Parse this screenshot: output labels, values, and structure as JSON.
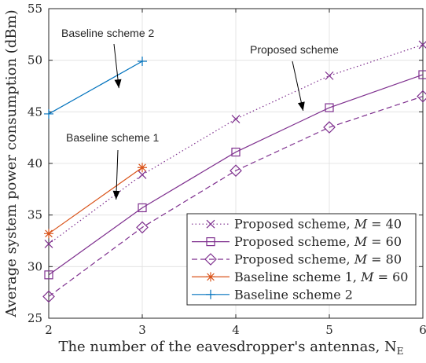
{
  "chart_data": {
    "type": "line",
    "xlabel": "The number of the eavesdropper's antennas, N",
    "xlabel_sub": "E",
    "ylabel": "Average system power consumption (dBm)",
    "xlim": [
      2,
      6
    ],
    "ylim": [
      25,
      55
    ],
    "xticks": [
      "2",
      "3",
      "4",
      "5",
      "6"
    ],
    "yticks": [
      "25",
      "30",
      "35",
      "40",
      "45",
      "50",
      "55"
    ],
    "grid": true,
    "legend_position": "bottom-right",
    "series": [
      {
        "legend_prefix": "Proposed scheme, ",
        "legend_var": "M",
        "legend_suffix": " = 40",
        "color": "#7E2F8E",
        "dash": "dotted",
        "marker": "x",
        "x": [
          2,
          3,
          4,
          5,
          6
        ],
        "values": [
          32.2,
          38.9,
          44.3,
          48.5,
          51.5
        ]
      },
      {
        "legend_prefix": "Proposed scheme, ",
        "legend_var": "M",
        "legend_suffix": " = 60",
        "color": "#7E2F8E",
        "dash": "solid",
        "marker": "square",
        "x": [
          2,
          3,
          4,
          5,
          6
        ],
        "values": [
          29.2,
          35.7,
          41.1,
          45.4,
          48.6
        ]
      },
      {
        "legend_prefix": "Proposed scheme, ",
        "legend_var": "M",
        "legend_suffix": " = 80",
        "color": "#7E2F8E",
        "dash": "dashed",
        "marker": "diamond",
        "x": [
          2,
          3,
          4,
          5,
          6
        ],
        "values": [
          27.1,
          33.8,
          39.3,
          43.5,
          46.5
        ]
      },
      {
        "legend_prefix": "Baseline scheme 1, ",
        "legend_var": "M",
        "legend_suffix": " = 60",
        "color": "#D95319",
        "dash": "solid",
        "marker": "asterisk",
        "x": [
          2,
          3
        ],
        "values": [
          33.2,
          39.6
        ]
      },
      {
        "legend_prefix": "Baseline scheme 2",
        "legend_var": "",
        "legend_suffix": "",
        "color": "#0072BD",
        "dash": "solid",
        "marker": "plus",
        "x": [
          2,
          3
        ],
        "values": [
          44.8,
          49.9
        ]
      }
    ],
    "annotations": [
      {
        "text": "Baseline scheme 2",
        "point_x": 2.75,
        "point_y": 47.3
      },
      {
        "text": "Baseline scheme 1",
        "point_x": 2.72,
        "point_y": 36.5
      },
      {
        "text": "Proposed scheme",
        "point_x": 4.72,
        "point_y": 45.1
      }
    ]
  }
}
